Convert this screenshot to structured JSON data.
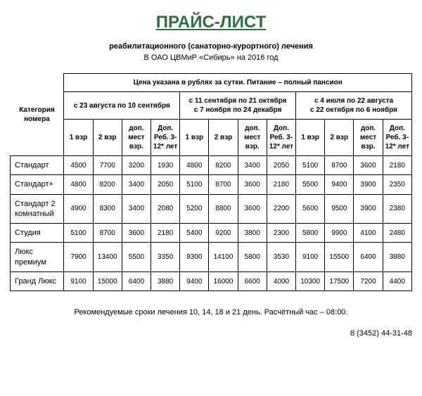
{
  "title": {
    "text": "ПРАЙС-ЛИСТ",
    "color": "#2f6e3f",
    "fontsize": 24
  },
  "subtitle1": "реабилитационного (санаторно-курортного) лечения",
  "subtitle2": "В ОАО ЦВМиР «Сибирь» на 2016 год",
  "table": {
    "header_row1": "Цена указана в рублях за сутки. Питание – полный пансион",
    "category_header": "Категория номера",
    "periods": [
      {
        "lines": [
          "с 23 августа по 10 сентября"
        ]
      },
      {
        "lines": [
          "с 11 сентября по 21 октября",
          "с 7 ноября по 24 декабря"
        ]
      },
      {
        "lines": [
          "с 4 июля по 22 августа",
          "с 22 октября по 6 ноября"
        ]
      }
    ],
    "subcols": [
      "1 взр",
      "2 взр",
      "доп. мест взр.",
      "Доп. Реб. 3-12* лет"
    ],
    "rows": [
      {
        "label": "Стандарт",
        "v": [
          4500,
          7700,
          3200,
          1930,
          4800,
          8200,
          3400,
          2050,
          5100,
          8700,
          3600,
          2180
        ]
      },
      {
        "label": "Стандарт+",
        "v": [
          4800,
          8200,
          3400,
          2050,
          5100,
          8700,
          3600,
          2180,
          5500,
          9400,
          3900,
          2350
        ]
      },
      {
        "label": "Стандарт 2 комнатный",
        "v": [
          4900,
          8300,
          3400,
          2080,
          5200,
          8800,
          3600,
          2200,
          5600,
          9500,
          3900,
          2380
        ]
      },
      {
        "label": "Студия",
        "v": [
          5100,
          8700,
          3600,
          2180,
          5400,
          9200,
          3800,
          2300,
          5800,
          9900,
          4100,
          2480
        ]
      },
      {
        "label": "Люкс премиум",
        "v": [
          7900,
          13400,
          5500,
          3350,
          8300,
          14100,
          5800,
          3530,
          9100,
          15500,
          6400,
          3880
        ]
      },
      {
        "label": "Гранд Люкс",
        "v": [
          9100,
          15000,
          6400,
          3880,
          9400,
          16000,
          6600,
          4000,
          10300,
          17500,
          7200,
          4400
        ]
      }
    ]
  },
  "footnote": "Рекомендуемые сроки лечения 10, 14, 18 и 21 день. Расчётный час – 08:00.",
  "phone": "8 (3452) 44-31-48"
}
